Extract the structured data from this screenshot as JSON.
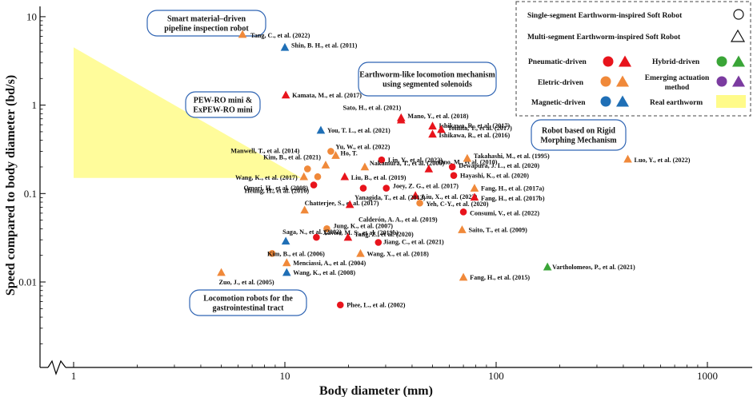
{
  "chart_data": {
    "type": "scatter",
    "xscale": "log",
    "yscale": "log",
    "xlabel": "Body diameter (mm)",
    "ylabel": "Speed compared to body diameter (bd/s)",
    "xlim": [
      0.85,
      2000
    ],
    "ylim": [
      0.001,
      20
    ],
    "xticks": [
      {
        "value": 1,
        "label": "1"
      },
      {
        "value": 10,
        "label": "10"
      },
      {
        "value": 100,
        "label": "100"
      },
      {
        "value": 1000,
        "label": "1000"
      }
    ],
    "yticks": [
      {
        "value": 0.01,
        "label": "0.01"
      },
      {
        "value": 0.1,
        "label": "0.1"
      },
      {
        "value": 1,
        "label": "1"
      },
      {
        "value": 10,
        "label": "10"
      }
    ],
    "colors": {
      "pneumatic": "#e8141c",
      "electric": "#f0893a",
      "magnetic": "#1f6fb6",
      "hybrid": "#3aa537",
      "emerging": "#7b3ba0",
      "earthworm": "#fffb8a"
    },
    "earthworm_region": [
      [
        1,
        4.5
      ],
      [
        1,
        0.15
      ],
      [
        12,
        0.15
      ]
    ],
    "points": [
      {
        "label": "Tang, C., et al. (2022)",
        "x": 6.3,
        "y": 6.3,
        "actuation": "electric",
        "shape": "triangle"
      },
      {
        "label": "Shin, B. H., et al. (2011)",
        "x": 10,
        "y": 4.5,
        "actuation": "magnetic",
        "shape": "triangle"
      },
      {
        "label": "Kamata, M., et al. (2017)",
        "x": 10.1,
        "y": 1.3,
        "actuation": "pneumatic",
        "shape": "triangle"
      },
      {
        "label": "Sato, H., et al. (2021)",
        "x": 35.5,
        "y": 0.72,
        "actuation": "pneumatic",
        "shape": "triangle"
      },
      {
        "label": "Mano, Y., et al. (2018)",
        "x": 35.5,
        "y": 0.68,
        "actuation": "pneumatic",
        "shape": "triangle"
      },
      {
        "label": "Ishikawa, R., et al. (2017)",
        "x": 50,
        "y": 0.58,
        "actuation": "pneumatic",
        "shape": "triangle"
      },
      {
        "label": "Tomita, T., et al. (2017)",
        "x": 55,
        "y": 0.53,
        "actuation": "pneumatic",
        "shape": "triangle"
      },
      {
        "label": "Ishikawa, R., et al. (2016)",
        "x": 50,
        "y": 0.47,
        "actuation": "pneumatic",
        "shape": "triangle"
      },
      {
        "label": "You, T. L., et al. (2021)",
        "x": 14.8,
        "y": 0.52,
        "actuation": "magnetic",
        "shape": "triangle"
      },
      {
        "label": "Yu, W., et al. (2022)",
        "x": 16.5,
        "y": 0.3,
        "actuation": "electric",
        "shape": "circle"
      },
      {
        "label": "Ho, T.",
        "x": 17.4,
        "y": 0.27,
        "actuation": "electric",
        "shape": "triangle"
      },
      {
        "label": "Lin, Y., et al. (2022)",
        "x": 28.7,
        "y": 0.24,
        "actuation": "pneumatic",
        "shape": "circle"
      },
      {
        "label": "Kim, B., et al. (2021)",
        "x": 15.6,
        "y": 0.21,
        "actuation": "electric",
        "shape": "triangle"
      },
      {
        "label": "Manwell, T., et al. (2014)",
        "x": 12.8,
        "y": 0.19,
        "actuation": "electric",
        "shape": "circle"
      },
      {
        "label": "Nakamura, T., et al. (2006)",
        "x": 23.9,
        "y": 0.2,
        "actuation": "electric",
        "shape": "triangle"
      },
      {
        "label": "Ono, M., et al. (2010)",
        "x": 48,
        "y": 0.19,
        "actuation": "pneumatic",
        "shape": "triangle"
      },
      {
        "label": "Dewapura, J. L., et al. (2020)",
        "x": 62,
        "y": 0.2,
        "actuation": "pneumatic",
        "shape": "circle"
      },
      {
        "label": "Takahashi, M., et al. (1995)",
        "x": 73,
        "y": 0.25,
        "actuation": "electric",
        "shape": "triangle"
      },
      {
        "label": "Hayashi, K., et al. (2020)",
        "x": 63,
        "y": 0.16,
        "actuation": "pneumatic",
        "shape": "circle"
      },
      {
        "label": "Luo, Y., et al. (2022)",
        "x": 420,
        "y": 0.245,
        "actuation": "electric",
        "shape": "triangle"
      },
      {
        "label": "Wang, K., et al. (2017)",
        "x": 12.3,
        "y": 0.155,
        "actuation": "electric",
        "shape": "triangle"
      },
      {
        "label": "Omori, H., et al. (2008)",
        "x": 14.3,
        "y": 0.155,
        "actuation": "electric",
        "shape": "circle"
      },
      {
        "label": "Liu, B., et al. (2019)",
        "x": 19.2,
        "y": 0.155,
        "actuation": "pneumatic",
        "shape": "triangle"
      },
      {
        "label": "Heung, H., et al. (2016)",
        "x": 13.7,
        "y": 0.125,
        "actuation": "pneumatic",
        "shape": "circle"
      },
      {
        "label": "Joey, Z. G., et al. (2017)",
        "x": 30.2,
        "y": 0.115,
        "actuation": "pneumatic",
        "shape": "circle"
      },
      {
        "label": "Liu, X., et al. (2022)",
        "x": 41.5,
        "y": 0.095,
        "actuation": "pneumatic",
        "shape": "triangle"
      },
      {
        "label": "Fang, H., et al. (2017a)",
        "x": 79,
        "y": 0.115,
        "actuation": "electric",
        "shape": "triangle"
      },
      {
        "label": "Fang, H., et al. (2017b)",
        "x": 79,
        "y": 0.091,
        "actuation": "pneumatic",
        "shape": "triangle"
      },
      {
        "label": "Yeh, C-Y., et al. (2020)",
        "x": 43.5,
        "y": 0.078,
        "actuation": "electric",
        "shape": "circle"
      },
      {
        "label": "Consumi, V., et al. (2022)",
        "x": 70,
        "y": 0.062,
        "actuation": "pneumatic",
        "shape": "circle"
      },
      {
        "label": "Chatterjee, S., et al. (2017)",
        "x": 12.4,
        "y": 0.065,
        "actuation": "electric",
        "shape": "triangle"
      },
      {
        "label": "Yanagida, T., et al. (2012)",
        "x": 20.3,
        "y": 0.075,
        "actuation": "pneumatic",
        "shape": "triangle"
      },
      {
        "label": "Calderón, A. A., et al. (2019)",
        "x": 23.5,
        "y": 0.115,
        "actuation": "pneumatic",
        "shape": "circle"
      },
      {
        "label": "Saito, T., et al. (2009)",
        "x": 69,
        "y": 0.039,
        "actuation": "electric",
        "shape": "triangle"
      },
      {
        "label": "Jung, K., et al. (2007)",
        "x": 15.8,
        "y": 0.04,
        "actuation": "electric",
        "shape": "circle"
      },
      {
        "label": "Saga, N., et al. (2002)",
        "x": 10.1,
        "y": 0.029,
        "actuation": "magnetic",
        "shape": "triangle"
      },
      {
        "label": "Xavier, M. S., et al. (2019b)",
        "x": 14.1,
        "y": 0.032,
        "actuation": "pneumatic",
        "shape": "circle"
      },
      {
        "label": "Tang, Z., et al. (2020)",
        "x": 19.9,
        "y": 0.032,
        "actuation": "pneumatic",
        "shape": "triangle"
      },
      {
        "label": "Jiang, C., et al. (2021)",
        "x": 27.7,
        "y": 0.028,
        "actuation": "pneumatic",
        "shape": "circle"
      },
      {
        "label": "Wang, X., et al. (2018)",
        "x": 22.8,
        "y": 0.021,
        "actuation": "electric",
        "shape": "triangle"
      },
      {
        "label": "Kim, B., et al. (2006)",
        "x": 8.7,
        "y": 0.021,
        "actuation": "electric",
        "shape": "circle"
      },
      {
        "label": "Menciassi, A., et al. (2004)",
        "x": 10.2,
        "y": 0.0165,
        "actuation": "electric",
        "shape": "triangle"
      },
      {
        "label": "Wang, K., et al. (2008)",
        "x": 10.2,
        "y": 0.0128,
        "actuation": "magnetic",
        "shape": "triangle"
      },
      {
        "label": "Zuo, J., et al. (2005)",
        "x": 5,
        "y": 0.0128,
        "actuation": "electric",
        "shape": "triangle"
      },
      {
        "label": "Vartholomeos, P., et al. (2021)",
        "x": 175,
        "y": 0.0148,
        "actuation": "hybrid",
        "shape": "triangle"
      },
      {
        "label": "Fang, H., et al. (2015)",
        "x": 70,
        "y": 0.0113,
        "actuation": "electric",
        "shape": "triangle"
      },
      {
        "label": "Phee, L., et al. (2002)",
        "x": 18.3,
        "y": 0.0055,
        "actuation": "pneumatic",
        "shape": "circle"
      }
    ],
    "annotations": [
      {
        "text": "Smart material–driven pipeline inspection robot",
        "lines": [
          "Smart material–driven",
          "pipeline inspection robot"
        ]
      },
      {
        "text": "Earthworm-like locomotion mechanism using segmented solenoids",
        "lines": [
          "Earthworm-like locomotion mechanism",
          "using segmented solenoids"
        ]
      },
      {
        "text": "PEW-RO mini & ExPEW-RO mini",
        "lines": [
          "PEW-RO mini &",
          "ExPEW-RO mini"
        ]
      },
      {
        "text": "Robot based on Rigid Morphing Mechanism",
        "lines": [
          "Robot based on Rigid",
          "Morphing Mechanism"
        ]
      },
      {
        "text": "Locomotion robots for the gastrointestinal tract",
        "lines": [
          "Locomotion robots for the",
          "gastrointestinal tract"
        ]
      }
    ],
    "legend": {
      "placement": "top-right",
      "single_segment": "Single-segment Earthworm-inspired Soft Robot",
      "multi_segment": "Multi-segment Earthworm-inspired Soft Robot",
      "pneumatic": "Pneumatic-driven",
      "hybrid": "Hybrid-driven",
      "electric": "Eletric-driven",
      "emerging_1": "Emerging actuation",
      "emerging_2": "method",
      "magnetic": "Magnetic-driven",
      "earthworm": "Real earthworm"
    }
  }
}
